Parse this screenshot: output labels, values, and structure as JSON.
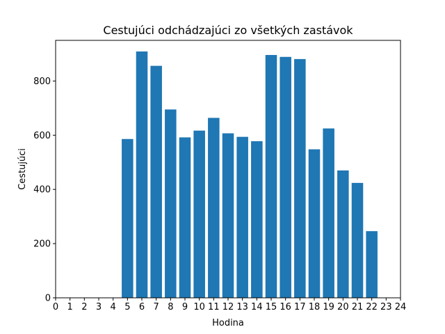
{
  "chart_data": {
    "type": "bar",
    "title": "Cestujúci odchádzajúci zo všetkých zastávok",
    "xlabel": "Hodina",
    "ylabel": "Cestujúci",
    "x": [
      5,
      6,
      7,
      8,
      9,
      10,
      11,
      12,
      13,
      14,
      15,
      16,
      17,
      18,
      19,
      20,
      21,
      22
    ],
    "values": [
      586,
      909,
      856,
      695,
      592,
      617,
      664,
      607,
      594,
      578,
      896,
      889,
      881,
      548,
      625,
      470,
      424,
      246
    ],
    "xlim": [
      0,
      24
    ],
    "ylim": [
      0,
      950
    ],
    "x_ticks": [
      "0",
      "1",
      "2",
      "3",
      "4",
      "5",
      "6",
      "7",
      "8",
      "9",
      "10",
      "11",
      "12",
      "13",
      "14",
      "15",
      "16",
      "17",
      "18",
      "19",
      "20",
      "21",
      "22",
      "23",
      "24"
    ],
    "y_ticks": [
      "0",
      "200",
      "400",
      "600",
      "800"
    ],
    "bar_color": "#1f77b4",
    "grid": false
  }
}
